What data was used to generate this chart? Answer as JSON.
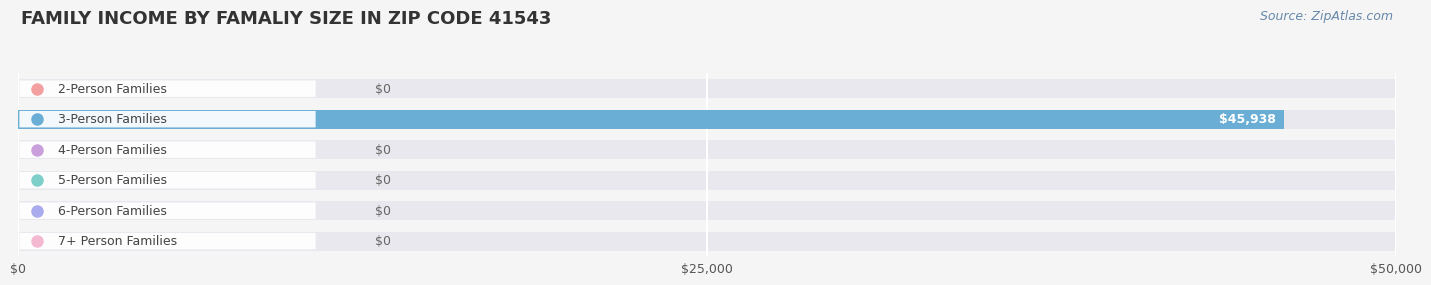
{
  "title": "FAMILY INCOME BY FAMALIY SIZE IN ZIP CODE 41543",
  "source": "Source: ZipAtlas.com",
  "categories": [
    "2-Person Families",
    "3-Person Families",
    "4-Person Families",
    "5-Person Families",
    "6-Person Families",
    "7+ Person Families"
  ],
  "values": [
    0,
    45938,
    0,
    0,
    0,
    0
  ],
  "bar_colors": [
    "#f4a0a0",
    "#6aaed6",
    "#c9a0dc",
    "#7ececa",
    "#aaaaee",
    "#f4b8d0"
  ],
  "xlim": [
    0,
    50000
  ],
  "xticks": [
    0,
    25000,
    50000
  ],
  "xtick_labels": [
    "$0",
    "$25,000",
    "$50,000"
  ],
  "background_color": "#f5f5f5",
  "bar_bg_color": "#e8e8ee",
  "title_fontsize": 13,
  "label_fontsize": 9,
  "value_label_fontsize": 9,
  "source_fontsize": 9
}
